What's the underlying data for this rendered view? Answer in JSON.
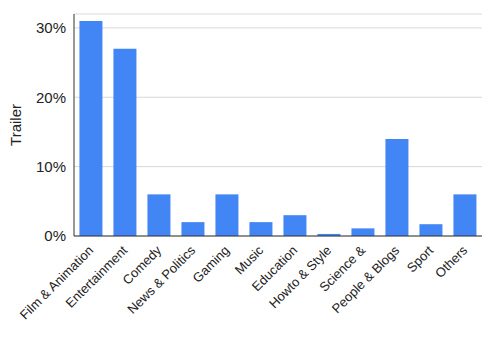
{
  "chart_data": {
    "type": "bar",
    "y_label": "Trailer",
    "categories": [
      "Film & Animation",
      "Entertainment",
      "Comedy",
      "News & Politics",
      "Gaming",
      "Music",
      "Education",
      "Howto & Style",
      "Science &",
      "People & Blogs",
      "Sport",
      "Others"
    ],
    "values": [
      31,
      27,
      6,
      2,
      6,
      2,
      3,
      0.3,
      1.1,
      14,
      1.7,
      6
    ],
    "color": "#4285f4",
    "ylim": [
      0,
      32
    ],
    "yticks": [
      {
        "value": 0,
        "label": "0%"
      },
      {
        "value": 10,
        "label": "10%"
      },
      {
        "value": 20,
        "label": "20%"
      },
      {
        "value": 30,
        "label": "30%"
      }
    ],
    "grid": true
  }
}
